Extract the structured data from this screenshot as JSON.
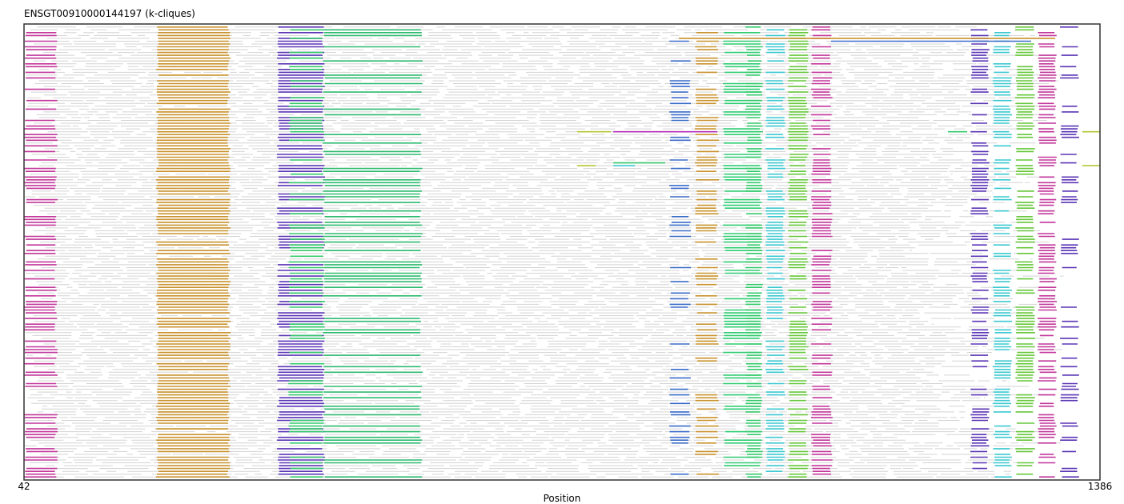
{
  "chart_data": {
    "type": "alignment-track",
    "title": "ENSGT00910000144197 (k-cliques)",
    "xlabel": "Position",
    "xlim": [
      42,
      1386
    ],
    "x_ticks": [
      42,
      1386
    ],
    "grid": false,
    "legend": "none",
    "n_rows": 160,
    "background_segment_color": "#d3d3d3",
    "cliques": [
      {
        "start": 42,
        "end": 84,
        "color": "#c2379a",
        "fraction": 0.52
      },
      {
        "start": 207,
        "end": 300,
        "color": "#c9922e",
        "fraction": 0.9
      },
      {
        "start": 358,
        "end": 418,
        "color": "#5a35b5",
        "fraction": 0.62
      },
      {
        "start": 372,
        "end": 418,
        "color": "#34c96b",
        "fraction": 0.35
      },
      {
        "start": 415,
        "end": 540,
        "color": "#2eba6f",
        "fraction": 0.35
      },
      {
        "start": 848,
        "end": 875,
        "color": "#3a6bc8",
        "fraction": 0.32
      },
      {
        "start": 880,
        "end": 910,
        "color": "#c9922e",
        "fraction": 0.42
      },
      {
        "start": 915,
        "end": 964,
        "color": "#2ecc71",
        "fraction": 0.38
      },
      {
        "start": 943,
        "end": 965,
        "color": "#34c96b",
        "fraction": 0.55
      },
      {
        "start": 968,
        "end": 993,
        "color": "#3cc8d0",
        "fraction": 0.5
      },
      {
        "start": 996,
        "end": 1022,
        "color": "#66c73a",
        "fraction": 0.62
      },
      {
        "start": 1025,
        "end": 1052,
        "color": "#c2379a",
        "fraction": 0.58
      },
      {
        "start": 1224,
        "end": 1248,
        "color": "#5a35b5",
        "fraction": 0.5
      },
      {
        "start": 1252,
        "end": 1276,
        "color": "#3cc8d0",
        "fraction": 0.58
      },
      {
        "start": 1280,
        "end": 1305,
        "color": "#66c73a",
        "fraction": 0.62
      },
      {
        "start": 1308,
        "end": 1332,
        "color": "#c2379a",
        "fraction": 0.62
      },
      {
        "start": 1336,
        "end": 1360,
        "color": "#5a35b5",
        "fraction": 0.3
      }
    ],
    "long_links": [
      {
        "row": 4,
        "start": 860,
        "end": 1330,
        "color": "#c9922e"
      },
      {
        "row": 5,
        "start": 1050,
        "end": 1300,
        "color": "#3a6bc8"
      },
      {
        "row": 37,
        "start": 733,
        "end": 775,
        "color": "#b5c733"
      },
      {
        "row": 37,
        "start": 778,
        "end": 908,
        "color": "#b02fb8"
      },
      {
        "row": 37,
        "start": 1196,
        "end": 1220,
        "color": "#34c96b"
      },
      {
        "row": 37,
        "start": 1364,
        "end": 1386,
        "color": "#b5c733"
      },
      {
        "row": 48,
        "start": 778,
        "end": 843,
        "color": "#34c96b"
      },
      {
        "row": 49,
        "start": 733,
        "end": 756,
        "color": "#b5c733"
      },
      {
        "row": 49,
        "start": 778,
        "end": 805,
        "color": "#3cc8d0"
      },
      {
        "row": 49,
        "start": 1364,
        "end": 1386,
        "color": "#b5c733"
      }
    ]
  }
}
